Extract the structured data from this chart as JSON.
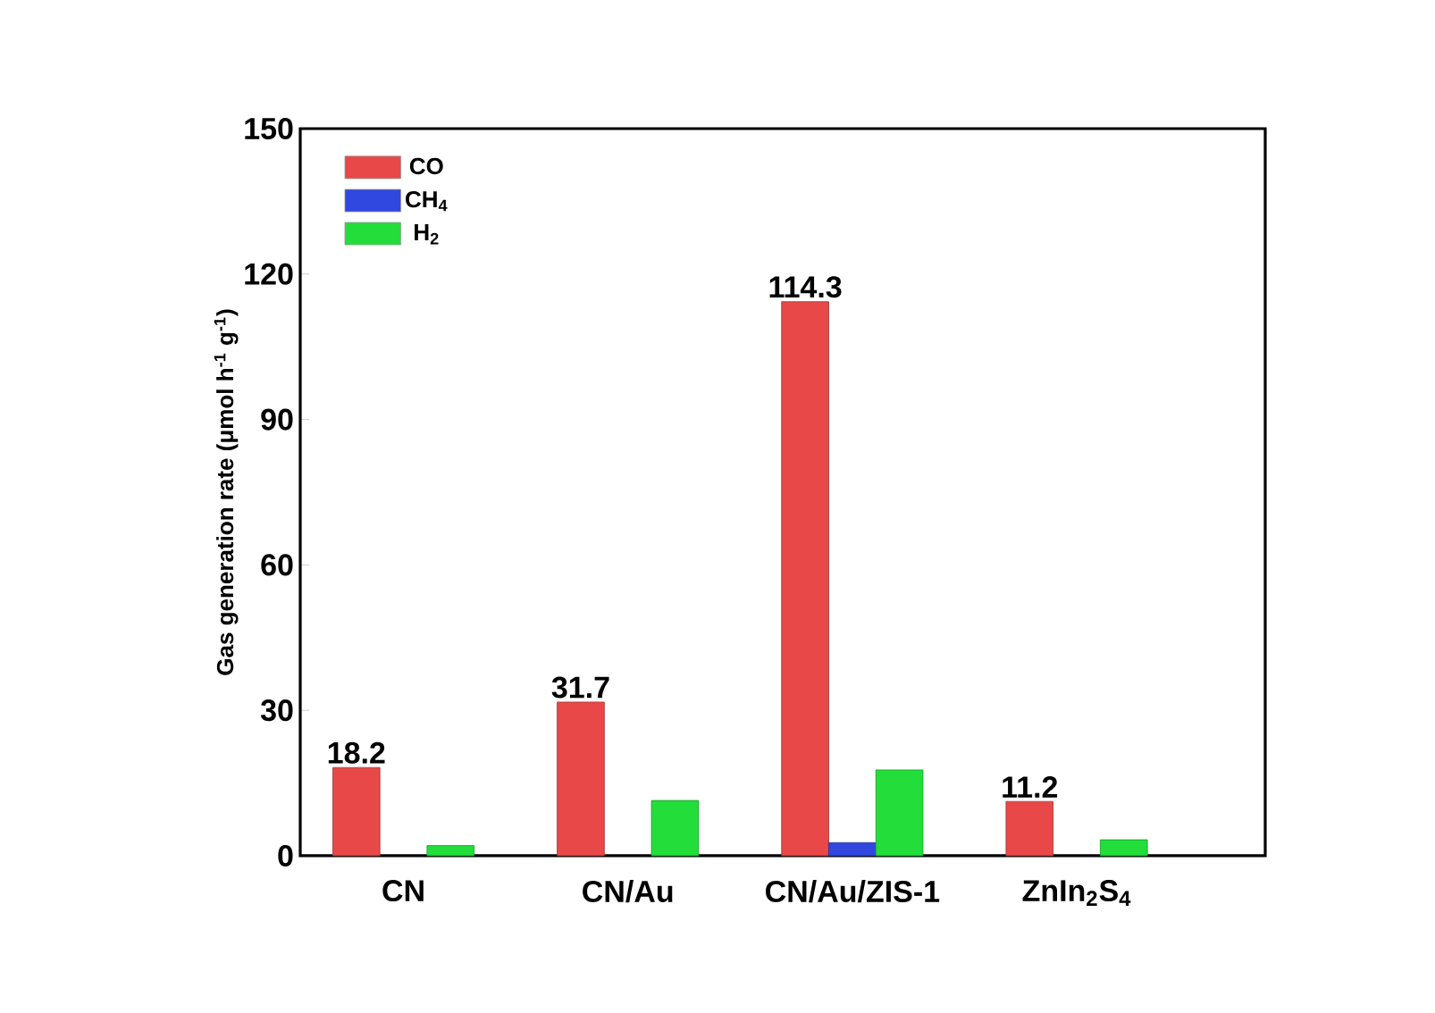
{
  "chart_data": {
    "type": "bar",
    "ylabel": "Gas generation rate (μmol h$^{-1}$ g$^{-1}$)",
    "categories": [
      "CN",
      "CN/Au",
      "CN/Au/ZIS-1",
      "ZnIn$_{2}$S$_{4}$"
    ],
    "series": [
      {
        "name": "CO",
        "color": "#e84848",
        "values": [
          18.2,
          31.7,
          114.3,
          11.2
        ],
        "value_labels": [
          "18.2",
          "31.7",
          "114.3",
          "11.2"
        ]
      },
      {
        "name": "CH$_{4}$",
        "color": "#3048e0",
        "values": [
          null,
          null,
          2.7,
          null
        ]
      },
      {
        "name": "H$_{2}$",
        "color": "#22dd3a",
        "values": [
          2.1,
          11.4,
          17.7,
          3.3
        ]
      }
    ],
    "ylim": [
      0,
      150
    ],
    "yticks": [
      0,
      30,
      60,
      90,
      120,
      150
    ],
    "legend": "top left",
    "grid": false
  }
}
